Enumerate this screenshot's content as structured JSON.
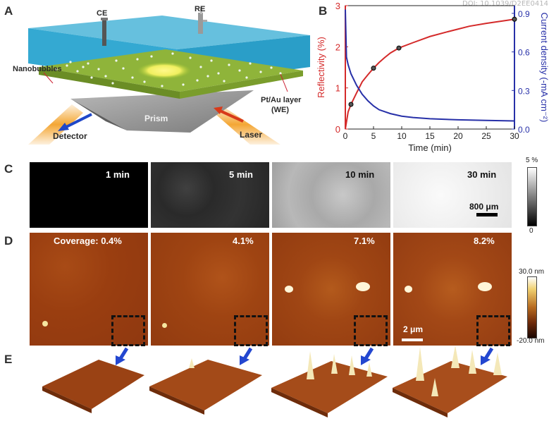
{
  "doi": "DOI: 10.1039/D2EE0414",
  "panels": {
    "a": "A",
    "b": "B",
    "c": "C",
    "d": "D",
    "e": "E"
  },
  "schematic": {
    "ce": "CE",
    "re": "RE",
    "nanobubbles": "Nanobubbles",
    "pt_au": "Pt/Au layer",
    "we": "(WE)",
    "prism": "Prism",
    "detector": "Detector",
    "laser": "Laser"
  },
  "panel_c": {
    "times": [
      "1 min",
      "5 min",
      "10 min",
      "30 min"
    ],
    "scalebar": "800 μm",
    "colorbar_max": "5 %",
    "colorbar_min": "0"
  },
  "panel_d": {
    "coverages": [
      "Coverage: 0.4%",
      "4.1%",
      "7.1%",
      "8.2%"
    ],
    "scalebar": "2 μm",
    "colorbar_max": "30.0 nm",
    "colorbar_min": "-20.0 nm"
  },
  "chart_data": {
    "type": "line",
    "xlabel": "Time (min)",
    "ylabel_left": "Reflectivity (%)",
    "ylabel_right": "Current density (-mA cm⁻²)",
    "xlim": [
      0,
      30
    ],
    "ylim_left": [
      0,
      3
    ],
    "ylim_right": [
      0,
      0.96
    ],
    "xticks": [
      "0",
      "5",
      "10",
      "15",
      "20",
      "25",
      "30"
    ],
    "yticks_left": [
      "0",
      "1",
      "2",
      "3"
    ],
    "yticks_right": [
      "0.0",
      "0.3",
      "0.6",
      "0.9"
    ],
    "series": [
      {
        "axis": "left",
        "color": "#d42a2a",
        "x": [
          0,
          0.5,
          1,
          2,
          3,
          4,
          5,
          6,
          7,
          8,
          9.5,
          12,
          15,
          18,
          20,
          22,
          25,
          28,
          30
        ],
        "values": [
          0,
          0.42,
          0.6,
          0.88,
          1.15,
          1.32,
          1.48,
          1.62,
          1.74,
          1.85,
          1.97,
          2.1,
          2.25,
          2.36,
          2.43,
          2.5,
          2.57,
          2.63,
          2.67
        ]
      },
      {
        "axis": "right",
        "color": "#2730a8",
        "x": [
          0,
          0.2,
          0.5,
          1,
          2,
          3,
          4,
          5,
          6,
          8,
          10,
          12,
          15,
          20,
          25,
          30
        ],
        "values": [
          0.93,
          0.56,
          0.5,
          0.43,
          0.34,
          0.27,
          0.22,
          0.18,
          0.15,
          0.12,
          0.1,
          0.09,
          0.08,
          0.072,
          0.067,
          0.063
        ]
      }
    ],
    "markers": {
      "x": [
        1,
        5,
        9.5,
        30
      ],
      "values": [
        0.6,
        1.48,
        1.97,
        2.67
      ]
    }
  }
}
